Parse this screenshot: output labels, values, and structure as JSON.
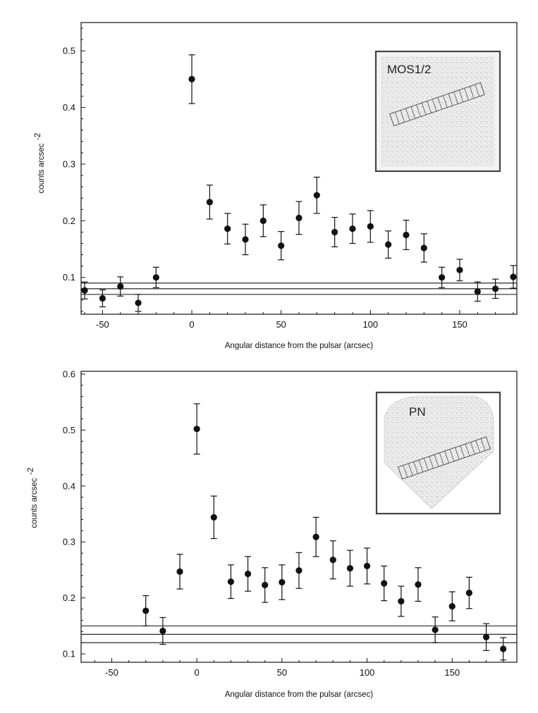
{
  "chart_data": [
    {
      "type": "scatter",
      "panel": "top",
      "inset_label": "MOS1/2",
      "xlabel": "Angular distance from the pulsar (arcsec)",
      "ylabel": "counts arcsec",
      "ylabel_exponent": "-2",
      "xlim": [
        -62,
        182
      ],
      "ylim": [
        0.035,
        0.55
      ],
      "xticks": [
        -50,
        0,
        50,
        100,
        150
      ],
      "xtick_labels": [
        "-50",
        "0",
        "50",
        "100",
        "150"
      ],
      "yticks": [
        0.1,
        0.2,
        0.3,
        0.4,
        0.5
      ],
      "ytick_labels": [
        "0.1",
        "0.2",
        "0.3",
        "0.4",
        "0.5"
      ],
      "background_lines": [
        0.07,
        0.08,
        0.09
      ],
      "series": [
        {
          "name": "MOS1/2",
          "x": [
            -60,
            -50,
            -40,
            -30,
            -20,
            0,
            10,
            20,
            30,
            40,
            50,
            60,
            70,
            80,
            90,
            100,
            110,
            120,
            130,
            140,
            150,
            160,
            170,
            180
          ],
          "y": [
            0.077,
            0.063,
            0.084,
            0.055,
            0.1,
            0.45,
            0.233,
            0.186,
            0.167,
            0.2,
            0.156,
            0.205,
            0.245,
            0.18,
            0.186,
            0.19,
            0.158,
            0.175,
            0.152,
            0.1,
            0.113,
            0.075,
            0.08,
            0.101
          ],
          "err": [
            0.015,
            0.015,
            0.017,
            0.015,
            0.018,
            0.043,
            0.03,
            0.027,
            0.027,
            0.028,
            0.025,
            0.029,
            0.032,
            0.026,
            0.026,
            0.028,
            0.024,
            0.026,
            0.025,
            0.018,
            0.019,
            0.017,
            0.017,
            0.02
          ]
        }
      ]
    },
    {
      "type": "scatter",
      "panel": "bottom",
      "inset_label": "PN",
      "xlabel": "Angular distance from the pulsar (arcsec)",
      "ylabel": "counts arcsec",
      "ylabel_exponent": "-2",
      "xlim": [
        -68,
        188
      ],
      "ylim": [
        0.085,
        0.605
      ],
      "xticks": [
        -50,
        0,
        50,
        100,
        150
      ],
      "xtick_labels": [
        "-50",
        "0",
        "50",
        "100",
        "150"
      ],
      "yticks": [
        0.1,
        0.2,
        0.3,
        0.4,
        0.5,
        0.6
      ],
      "ytick_labels": [
        "0.1",
        "0.2",
        "0.3",
        "0.4",
        "0.5",
        "0.6"
      ],
      "background_lines": [
        0.12,
        0.135,
        0.15
      ],
      "series": [
        {
          "name": "PN",
          "x": [
            -30,
            -20,
            -10,
            0,
            10,
            20,
            30,
            40,
            50,
            60,
            70,
            80,
            90,
            100,
            110,
            120,
            130,
            140,
            150,
            160,
            170,
            180
          ],
          "y": [
            0.177,
            0.141,
            0.247,
            0.502,
            0.344,
            0.229,
            0.243,
            0.223,
            0.228,
            0.249,
            0.309,
            0.268,
            0.253,
            0.257,
            0.226,
            0.194,
            0.224,
            0.143,
            0.185,
            0.209,
            0.13,
            0.109
          ],
          "err": [
            0.027,
            0.024,
            0.031,
            0.045,
            0.038,
            0.03,
            0.031,
            0.031,
            0.031,
            0.032,
            0.035,
            0.034,
            0.032,
            0.032,
            0.031,
            0.027,
            0.03,
            0.023,
            0.026,
            0.028,
            0.024,
            0.02
          ]
        }
      ]
    }
  ]
}
